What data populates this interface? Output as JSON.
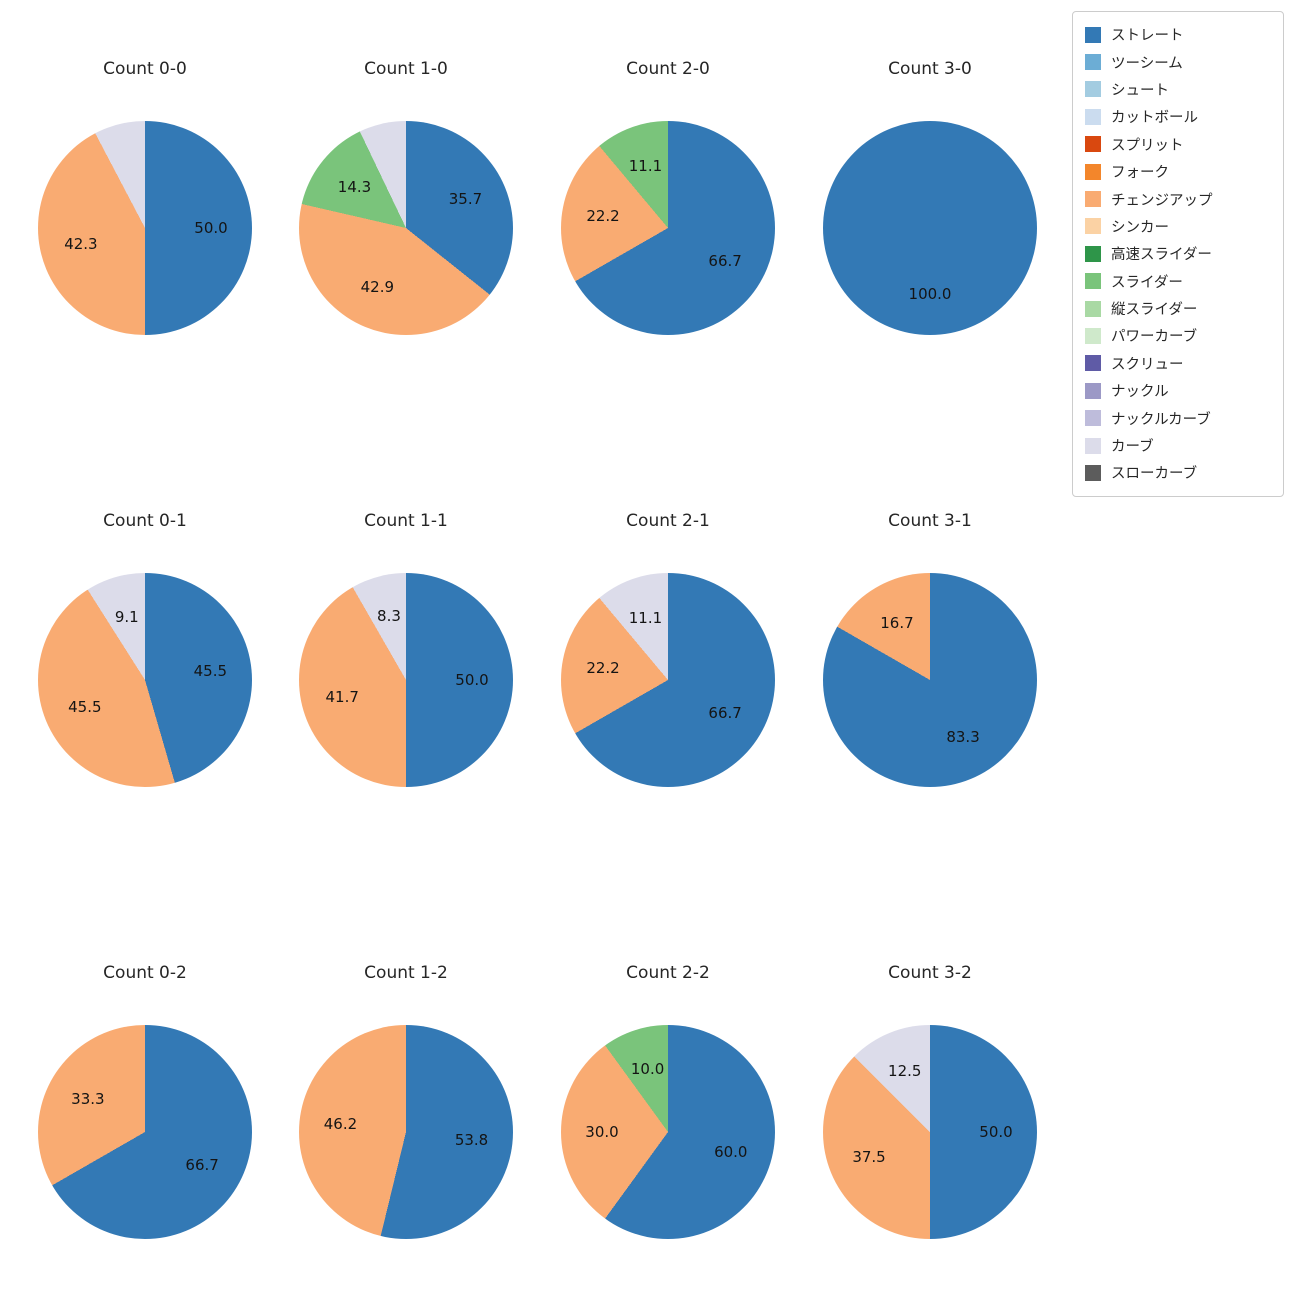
{
  "legend": {
    "items": [
      {
        "label": "ストレート",
        "color": "#3379b5"
      },
      {
        "label": "ツーシーム",
        "color": "#6cadd5"
      },
      {
        "label": "シュート",
        "color": "#a3cce1"
      },
      {
        "label": "カットボール",
        "color": "#cbdcef"
      },
      {
        "label": "スプリット",
        "color": "#d9480f"
      },
      {
        "label": "フォーク",
        "color": "#f3862b"
      },
      {
        "label": "チェンジアップ",
        "color": "#f9ab72"
      },
      {
        "label": "シンカー",
        "color": "#fbd2a4"
      },
      {
        "label": "高速スライダー",
        "color": "#2e9549"
      },
      {
        "label": "スライダー",
        "color": "#7ac47b"
      },
      {
        "label": "縦スライダー",
        "color": "#a9d9a4"
      },
      {
        "label": "パワーカーブ",
        "color": "#cfe9cb"
      },
      {
        "label": "スクリュー",
        "color": "#5f5ba6"
      },
      {
        "label": "ナックル",
        "color": "#9c99c6"
      },
      {
        "label": "ナックルカーブ",
        "color": "#bebcdb"
      },
      {
        "label": "カーブ",
        "color": "#dcdcea"
      },
      {
        "label": "スローカーブ",
        "color": "#5c5c5c"
      }
    ]
  },
  "chart_data": {
    "type": "pie",
    "title": "",
    "layout": {
      "rows": 3,
      "cols": 4,
      "start_angle_deg": 90,
      "direction": "clockwise",
      "legend_position": "upper right",
      "label_distance": 0.62,
      "units": "percent"
    },
    "charts": [
      {
        "title": "Count 0-0",
        "slices": [
          {
            "pitch": "ストレート",
            "value": 50.0,
            "label": "50.0"
          },
          {
            "pitch": "チェンジアップ",
            "value": 42.3,
            "label": "42.3"
          },
          {
            "pitch": "カーブ",
            "value": 7.7,
            "label": ""
          }
        ]
      },
      {
        "title": "Count 1-0",
        "slices": [
          {
            "pitch": "ストレート",
            "value": 35.7,
            "label": "35.7"
          },
          {
            "pitch": "チェンジアップ",
            "value": 42.9,
            "label": "42.9"
          },
          {
            "pitch": "スライダー",
            "value": 14.3,
            "label": "14.3"
          },
          {
            "pitch": "カーブ",
            "value": 7.1,
            "label": ""
          }
        ]
      },
      {
        "title": "Count 2-0",
        "slices": [
          {
            "pitch": "ストレート",
            "value": 66.7,
            "label": "66.7"
          },
          {
            "pitch": "チェンジアップ",
            "value": 22.2,
            "label": "22.2"
          },
          {
            "pitch": "スライダー",
            "value": 11.1,
            "label": "11.1"
          }
        ]
      },
      {
        "title": "Count 3-0",
        "slices": [
          {
            "pitch": "ストレート",
            "value": 100.0,
            "label": "100.0"
          }
        ]
      },
      {
        "title": "Count 0-1",
        "slices": [
          {
            "pitch": "ストレート",
            "value": 45.5,
            "label": "45.5"
          },
          {
            "pitch": "チェンジアップ",
            "value": 45.5,
            "label": "45.5"
          },
          {
            "pitch": "カーブ",
            "value": 9.1,
            "label": "9.1"
          }
        ]
      },
      {
        "title": "Count 1-1",
        "slices": [
          {
            "pitch": "ストレート",
            "value": 50.0,
            "label": "50.0"
          },
          {
            "pitch": "チェンジアップ",
            "value": 41.7,
            "label": "41.7"
          },
          {
            "pitch": "カーブ",
            "value": 8.3,
            "label": "8.3"
          }
        ]
      },
      {
        "title": "Count 2-1",
        "slices": [
          {
            "pitch": "ストレート",
            "value": 66.7,
            "label": "66.7"
          },
          {
            "pitch": "チェンジアップ",
            "value": 22.2,
            "label": "22.2"
          },
          {
            "pitch": "カーブ",
            "value": 11.1,
            "label": "11.1"
          }
        ]
      },
      {
        "title": "Count 3-1",
        "slices": [
          {
            "pitch": "ストレート",
            "value": 83.3,
            "label": "83.3"
          },
          {
            "pitch": "チェンジアップ",
            "value": 16.7,
            "label": "16.7"
          }
        ]
      },
      {
        "title": "Count 0-2",
        "slices": [
          {
            "pitch": "ストレート",
            "value": 66.7,
            "label": "66.7"
          },
          {
            "pitch": "チェンジアップ",
            "value": 33.3,
            "label": "33.3"
          }
        ]
      },
      {
        "title": "Count 1-2",
        "slices": [
          {
            "pitch": "ストレート",
            "value": 53.8,
            "label": "53.8"
          },
          {
            "pitch": "チェンジアップ",
            "value": 46.2,
            "label": "46.2"
          }
        ]
      },
      {
        "title": "Count 2-2",
        "slices": [
          {
            "pitch": "ストレート",
            "value": 60.0,
            "label": "60.0"
          },
          {
            "pitch": "チェンジアップ",
            "value": 30.0,
            "label": "30.0"
          },
          {
            "pitch": "スライダー",
            "value": 10.0,
            "label": "10.0"
          }
        ]
      },
      {
        "title": "Count 3-2",
        "slices": [
          {
            "pitch": "ストレート",
            "value": 50.0,
            "label": "50.0"
          },
          {
            "pitch": "チェンジアップ",
            "value": 37.5,
            "label": "37.5"
          },
          {
            "pitch": "カーブ",
            "value": 12.5,
            "label": "12.5"
          }
        ]
      }
    ]
  }
}
